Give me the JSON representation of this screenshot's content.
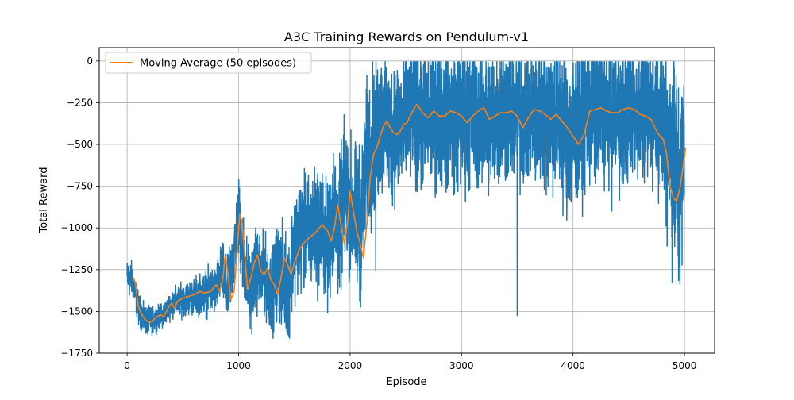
{
  "chart_data": {
    "type": "line",
    "title": "A3C Training Rewards on Pendulum-v1",
    "xlabel": "Episode",
    "ylabel": "Total Reward",
    "xlim": [
      -250,
      5270
    ],
    "ylim": [
      -1750,
      80
    ],
    "xticks": [
      0,
      1000,
      2000,
      3000,
      4000,
      5000
    ],
    "xtick_labels": [
      "0",
      "1000",
      "2000",
      "3000",
      "4000",
      "5000"
    ],
    "yticks": [
      0,
      -250,
      -500,
      -750,
      -1000,
      -1250,
      -1500,
      -1750
    ],
    "ytick_labels": [
      "0",
      "−250",
      "−500",
      "−750",
      "−1000",
      "−1250",
      "−1500",
      "−1750"
    ],
    "grid": true,
    "legend": {
      "placement": "top-left"
    },
    "series": [
      {
        "name": "",
        "role": "raw-episode-rewards",
        "color": "#1f77b4",
        "x_range": [
          0,
          5000
        ],
        "points_count": 5000,
        "mean_x": [
          0,
          50,
          100,
          150,
          200,
          250,
          300,
          350,
          400,
          500,
          600,
          700,
          800,
          850,
          900,
          950,
          1000,
          1050,
          1100,
          1150,
          1200,
          1250,
          1300,
          1350,
          1400,
          1450,
          1500,
          1600,
          1700,
          1750,
          1800,
          1850,
          1900,
          1950,
          2000,
          2050,
          2100,
          2150,
          2200,
          2250,
          2300,
          2350,
          2400,
          2450,
          2500,
          2550,
          2600,
          2700,
          2800,
          2900,
          3000,
          3100,
          3200,
          3300,
          3400,
          3500,
          3600,
          3700,
          3800,
          3900,
          4000,
          4100,
          4200,
          4300,
          4400,
          4500,
          4600,
          4700,
          4750,
          4800,
          4850,
          4900,
          4950,
          5000
        ],
        "mean_y": [
          -1300,
          -1310,
          -1480,
          -1550,
          -1560,
          -1545,
          -1530,
          -1500,
          -1450,
          -1430,
          -1410,
          -1390,
          -1370,
          -1250,
          -1390,
          -1200,
          -940,
          -1200,
          -1400,
          -1250,
          -1280,
          -1300,
          -1400,
          -1250,
          -1300,
          -1350,
          -1080,
          -1040,
          -1000,
          -1000,
          -1150,
          -880,
          -1050,
          -770,
          -880,
          -950,
          -980,
          -600,
          -480,
          -430,
          -340,
          -450,
          -380,
          -400,
          -350,
          -300,
          -330,
          -360,
          -300,
          -330,
          -350,
          -320,
          -360,
          -330,
          -300,
          -330,
          -320,
          -340,
          -310,
          -380,
          -450,
          -300,
          -290,
          -320,
          -330,
          -300,
          -300,
          -300,
          -250,
          -330,
          -420,
          -550,
          -820,
          -520
        ],
        "spread": [
          90,
          90,
          80,
          70,
          70,
          60,
          60,
          60,
          70,
          80,
          90,
          110,
          120,
          140,
          160,
          180,
          200,
          220,
          200,
          200,
          190,
          200,
          210,
          230,
          250,
          260,
          270,
          280,
          300,
          300,
          320,
          330,
          330,
          340,
          350,
          360,
          380,
          380,
          380,
          380,
          360,
          360,
          360,
          360,
          360,
          360,
          360,
          360,
          360,
          360,
          360,
          360,
          360,
          360,
          360,
          360,
          360,
          360,
          380,
          400,
          420,
          400,
          380,
          360,
          360,
          360,
          360,
          360,
          380,
          420,
          500,
          560,
          560,
          500
        ],
        "max_y": -5,
        "min_y": -1660,
        "outliers": [
          [
            3500,
            -1525
          ],
          [
            2230,
            -1255
          ]
        ]
      },
      {
        "name": "Moving Average (50 episodes)",
        "role": "moving-average",
        "color": "#ff7f0e",
        "x": [
          49,
          75,
          100,
          125,
          150,
          175,
          200,
          225,
          250,
          275,
          300,
          325,
          350,
          375,
          400,
          425,
          450,
          500,
          550,
          600,
          650,
          700,
          750,
          800,
          830,
          860,
          880,
          900,
          930,
          960,
          990,
          1010,
          1030,
          1050,
          1080,
          1110,
          1140,
          1170,
          1200,
          1230,
          1260,
          1290,
          1320,
          1350,
          1380,
          1410,
          1440,
          1470,
          1500,
          1550,
          1600,
          1650,
          1700,
          1750,
          1800,
          1830,
          1860,
          1890,
          1920,
          1950,
          1980,
          2000,
          2030,
          2060,
          2090,
          2120,
          2150,
          2180,
          2210,
          2240,
          2270,
          2300,
          2330,
          2360,
          2390,
          2420,
          2450,
          2480,
          2510,
          2540,
          2570,
          2600,
          2650,
          2700,
          2750,
          2800,
          2850,
          2900,
          2950,
          3000,
          3050,
          3100,
          3150,
          3200,
          3250,
          3300,
          3350,
          3400,
          3450,
          3500,
          3550,
          3600,
          3650,
          3700,
          3750,
          3800,
          3850,
          3900,
          3950,
          4000,
          4050,
          4100,
          4150,
          4200,
          4250,
          4300,
          4350,
          4400,
          4450,
          4500,
          4550,
          4600,
          4650,
          4700,
          4750,
          4780,
          4810,
          4840,
          4870,
          4900,
          4930,
          4960,
          4990,
          5010
        ],
        "y": [
          -1290,
          -1330,
          -1470,
          -1510,
          -1540,
          -1555,
          -1565,
          -1560,
          -1540,
          -1530,
          -1520,
          -1530,
          -1505,
          -1470,
          -1450,
          -1480,
          -1440,
          -1420,
          -1410,
          -1400,
          -1380,
          -1390,
          -1380,
          -1340,
          -1380,
          -1300,
          -1160,
          -1250,
          -1430,
          -1380,
          -1100,
          -920,
          -960,
          -1120,
          -1370,
          -1300,
          -1210,
          -1160,
          -1260,
          -1280,
          -1240,
          -1310,
          -1340,
          -1400,
          -1300,
          -1180,
          -1220,
          -1280,
          -1210,
          -1120,
          -1080,
          -1050,
          -1020,
          -980,
          -1020,
          -1080,
          -1000,
          -860,
          -990,
          -1100,
          -950,
          -780,
          -900,
          -1020,
          -1090,
          -1180,
          -980,
          -700,
          -560,
          -520,
          -450,
          -390,
          -360,
          -400,
          -430,
          -440,
          -420,
          -380,
          -370,
          -330,
          -290,
          -260,
          -310,
          -340,
          -300,
          -330,
          -330,
          -300,
          -310,
          -330,
          -370,
          -330,
          -300,
          -280,
          -350,
          -330,
          -310,
          -310,
          -300,
          -330,
          -400,
          -340,
          -290,
          -300,
          -320,
          -350,
          -320,
          -360,
          -400,
          -450,
          -500,
          -440,
          -300,
          -290,
          -280,
          -300,
          -310,
          -310,
          -290,
          -280,
          -290,
          -320,
          -330,
          -350,
          -420,
          -450,
          -470,
          -560,
          -750,
          -820,
          -840,
          -760,
          -620,
          -520
        ]
      }
    ]
  }
}
